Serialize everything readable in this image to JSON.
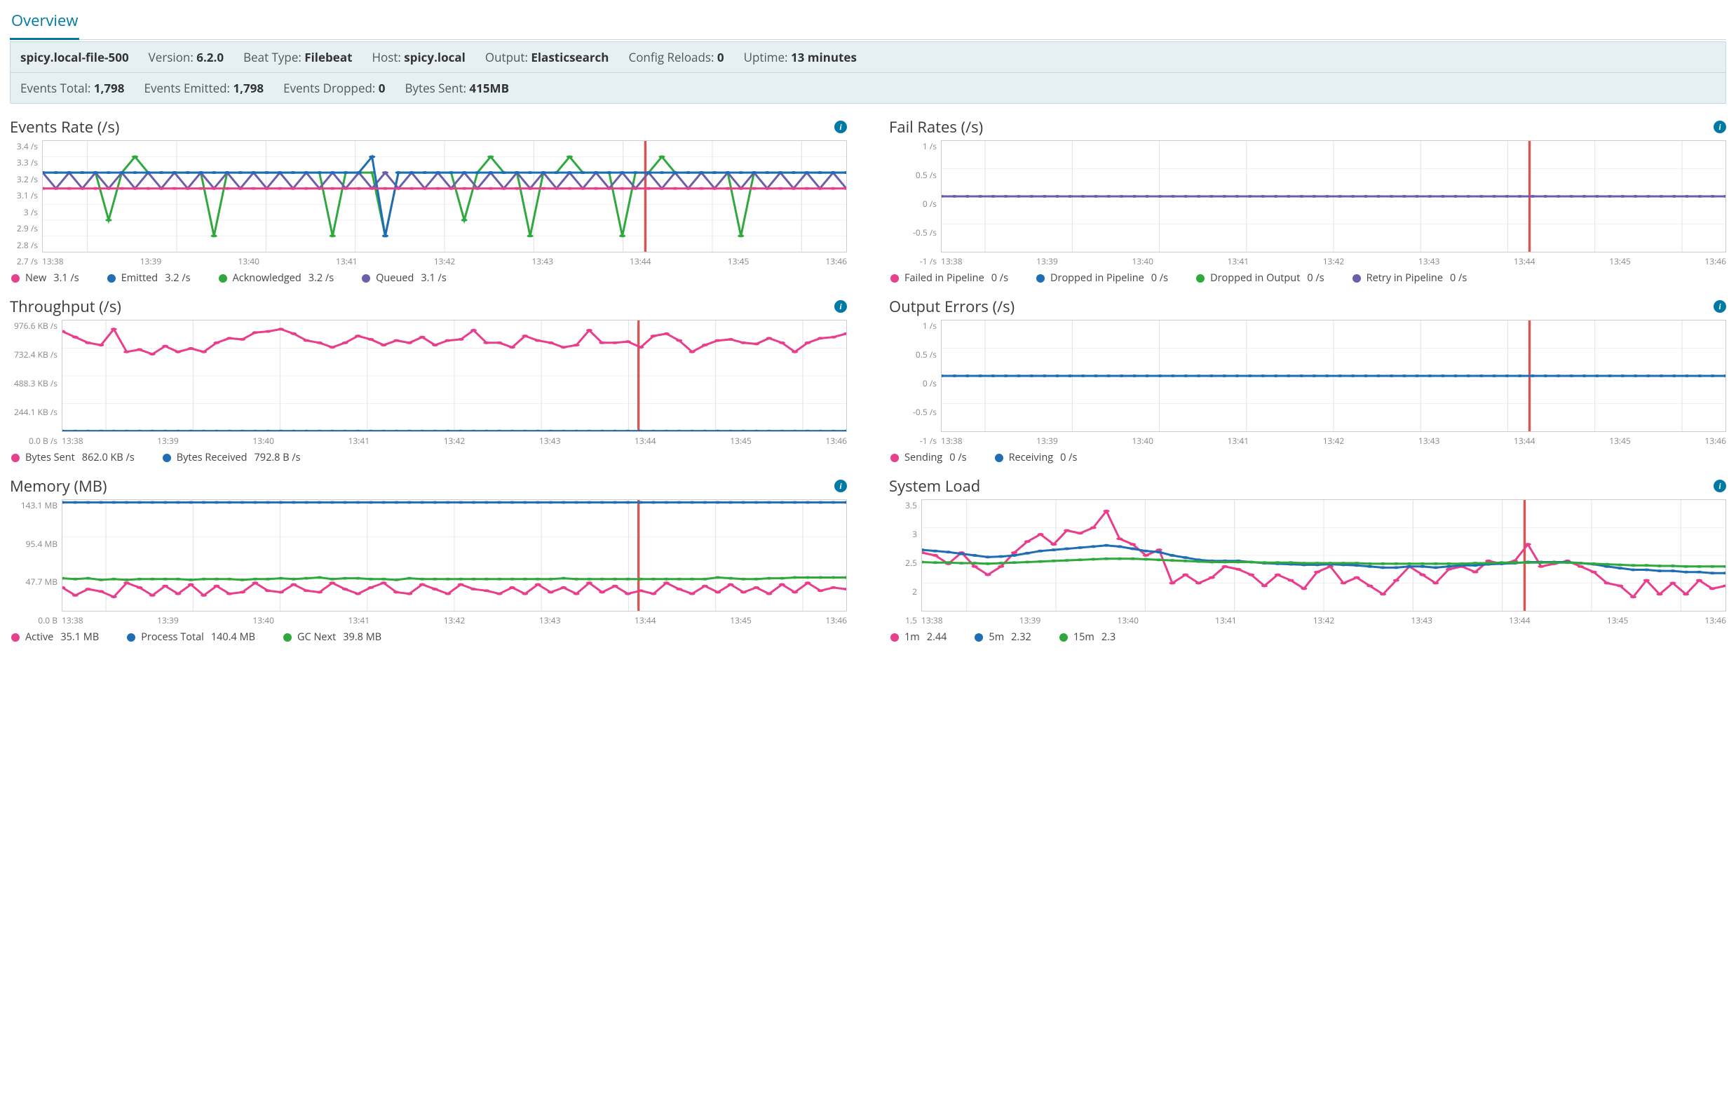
{
  "tab": {
    "label": "Overview"
  },
  "summary": {
    "row1": [
      {
        "kind": "node",
        "value": "spicy.local-file-500"
      },
      {
        "label": "Version:",
        "value": "6.2.0"
      },
      {
        "label": "Beat Type:",
        "value": "Filebeat"
      },
      {
        "label": "Host:",
        "value": "spicy.local"
      },
      {
        "label": "Output:",
        "value": "Elasticsearch"
      },
      {
        "label": "Config Reloads:",
        "value": "0"
      },
      {
        "label": "Uptime:",
        "value": "13 minutes"
      }
    ],
    "row2": [
      {
        "label": "Events Total:",
        "value": "1,798"
      },
      {
        "label": "Events Emitted:",
        "value": "1,798"
      },
      {
        "label": "Events Dropped:",
        "value": "0"
      },
      {
        "label": "Bytes Sent:",
        "value": "415MB"
      }
    ]
  },
  "x_labels": [
    "13:38",
    "13:39",
    "13:40",
    "13:41",
    "13:42",
    "13:43",
    "13:44",
    "13:45",
    "13:46"
  ],
  "colors": {
    "pink": "#e83e8c",
    "blue": "#1f6db5",
    "green": "#2fa83e",
    "purple": "#6b5fab",
    "grid": "#e4e4e4",
    "border": "#cccccc",
    "marker_red": "#d9534f"
  },
  "charts": {
    "events_rate": {
      "title": "Events Rate (/s)",
      "y_labels": [
        "3.4 /s",
        "3.3 /s",
        "3.2 /s",
        "3.1 /s",
        "3 /s",
        "2.9 /s",
        "2.8 /s",
        "2.7 /s"
      ],
      "y_min": 2.7,
      "y_max": 3.4,
      "marker_x": 0.75,
      "legend": [
        {
          "color": "pink",
          "label": "New",
          "value": "3.1 /s"
        },
        {
          "color": "blue",
          "label": "Emitted",
          "value": "3.2 /s"
        },
        {
          "color": "green",
          "label": "Acknowledged",
          "value": "3.2 /s"
        },
        {
          "color": "purple",
          "label": "Queued",
          "value": "3.1 /s"
        }
      ],
      "series": {
        "green": [
          3.2,
          3.2,
          3.2,
          3.2,
          3.2,
          2.9,
          3.2,
          3.3,
          3.2,
          3.2,
          3.2,
          3.2,
          3.2,
          2.8,
          3.2,
          3.2,
          3.2,
          3.2,
          3.2,
          3.2,
          3.2,
          3.2,
          2.8,
          3.2,
          3.2,
          3.2,
          2.8,
          3.2,
          3.2,
          3.2,
          3.2,
          3.2,
          2.9,
          3.2,
          3.3,
          3.2,
          3.2,
          2.8,
          3.2,
          3.2,
          3.3,
          3.2,
          3.2,
          3.2,
          2.8,
          3.2,
          3.2,
          3.3,
          3.2,
          3.2,
          3.2,
          3.2,
          3.2,
          2.8,
          3.2,
          3.2,
          3.2,
          3.2,
          3.2,
          3.2,
          3.2,
          3.2
        ],
        "purple": [
          3.2,
          3.1,
          3.2,
          3.1,
          3.2,
          3.1,
          3.2,
          3.1,
          3.2,
          3.1,
          3.2,
          3.1,
          3.2,
          3.1,
          3.2,
          3.1,
          3.2,
          3.1,
          3.2,
          3.1,
          3.2,
          3.1,
          3.2,
          3.1,
          3.2,
          3.1,
          3.2,
          3.1,
          3.2,
          3.1,
          3.2,
          3.1,
          3.2,
          3.1,
          3.2,
          3.1,
          3.2,
          3.1,
          3.2,
          3.1,
          3.2,
          3.1,
          3.2,
          3.1,
          3.2,
          3.1,
          3.2,
          3.1,
          3.2,
          3.1,
          3.2,
          3.1,
          3.2,
          3.1,
          3.2,
          3.1,
          3.2,
          3.1,
          3.2,
          3.1,
          3.2,
          3.1
        ],
        "blue": [
          3.2,
          3.2,
          3.2,
          3.2,
          3.2,
          3.2,
          3.2,
          3.2,
          3.2,
          3.2,
          3.2,
          3.2,
          3.2,
          3.2,
          3.2,
          3.2,
          3.2,
          3.2,
          3.2,
          3.2,
          3.2,
          3.2,
          3.2,
          3.2,
          3.2,
          3.3,
          2.8,
          3.2,
          3.2,
          3.2,
          3.2,
          3.2,
          3.2,
          3.2,
          3.2,
          3.2,
          3.2,
          3.2,
          3.2,
          3.2,
          3.2,
          3.2,
          3.2,
          3.2,
          3.2,
          3.2,
          3.2,
          3.2,
          3.2,
          3.2,
          3.2,
          3.2,
          3.2,
          3.2,
          3.2,
          3.2,
          3.2,
          3.2,
          3.2,
          3.2,
          3.2,
          3.2
        ],
        "pink": [
          3.1,
          3.1,
          3.1,
          3.1,
          3.1,
          3.1,
          3.1,
          3.1,
          3.1,
          3.1,
          3.1,
          3.1,
          3.1,
          3.1,
          3.1,
          3.1,
          3.1,
          3.1,
          3.1,
          3.1,
          3.1,
          3.1,
          3.1,
          3.1,
          3.1,
          3.1,
          3.1,
          3.1,
          3.1,
          3.1,
          3.1,
          3.1,
          3.1,
          3.1,
          3.1,
          3.1,
          3.1,
          3.1,
          3.1,
          3.1,
          3.1,
          3.1,
          3.1,
          3.1,
          3.1,
          3.1,
          3.1,
          3.1,
          3.1,
          3.1,
          3.1,
          3.1,
          3.1,
          3.1,
          3.1,
          3.1,
          3.1,
          3.1,
          3.1,
          3.1,
          3.1,
          3.1
        ]
      }
    },
    "fail_rates": {
      "title": "Fail Rates (/s)",
      "y_labels": [
        "1 /s",
        "0.5 /s",
        "0 /s",
        "-0.5 /s",
        "-1 /s"
      ],
      "y_min": -1,
      "y_max": 1,
      "marker_x": 0.75,
      "legend": [
        {
          "color": "pink",
          "label": "Failed in Pipeline",
          "value": "0 /s"
        },
        {
          "color": "blue",
          "label": "Dropped in Pipeline",
          "value": "0 /s"
        },
        {
          "color": "green",
          "label": "Dropped in Output",
          "value": "0 /s"
        },
        {
          "color": "purple",
          "label": "Retry in Pipeline",
          "value": "0 /s"
        }
      ],
      "series": {
        "purple": [
          0,
          0,
          0,
          0,
          0,
          0,
          0,
          0,
          0,
          0,
          0,
          0,
          0,
          0,
          0,
          0,
          0,
          0,
          0,
          0,
          0,
          0,
          0,
          0,
          0,
          0,
          0,
          0,
          0,
          0,
          0,
          0,
          0,
          0,
          0,
          0,
          0,
          0,
          0,
          0,
          0,
          0,
          0,
          0,
          0,
          0,
          0,
          0,
          0,
          0,
          0,
          0,
          0,
          0,
          0,
          0,
          0,
          0,
          0,
          0,
          0,
          0
        ]
      }
    },
    "throughput": {
      "title": "Throughput (/s)",
      "y_labels": [
        "976.6 KB /s",
        "732.4 KB /s",
        "488.3 KB /s",
        "244.1 KB /s",
        "0.0 B /s"
      ],
      "y_min": 0,
      "y_max": 976.6,
      "marker_x": 0.735,
      "legend": [
        {
          "color": "pink",
          "label": "Bytes Sent",
          "value": "862.0 KB /s"
        },
        {
          "color": "blue",
          "label": "Bytes Received",
          "value": "792.8 B /s"
        }
      ],
      "series": {
        "pink": [
          880,
          830,
          780,
          760,
          900,
          700,
          720,
          680,
          750,
          700,
          730,
          700,
          780,
          820,
          810,
          870,
          880,
          900,
          860,
          800,
          780,
          740,
          780,
          840,
          810,
          760,
          800,
          780,
          830,
          760,
          800,
          810,
          890,
          780,
          780,
          740,
          840,
          800,
          780,
          740,
          760,
          890,
          780,
          780,
          790,
          740,
          840,
          860,
          800,
          700,
          760,
          800,
          810,
          780,
          770,
          820,
          780,
          700,
          780,
          820,
          830,
          860
        ],
        "blue": [
          2,
          2,
          2,
          2,
          2,
          2,
          2,
          2,
          2,
          2,
          2,
          2,
          2,
          2,
          2,
          2,
          2,
          2,
          2,
          2,
          2,
          2,
          2,
          2,
          2,
          2,
          2,
          2,
          2,
          2,
          2,
          2,
          2,
          2,
          2,
          2,
          2,
          2,
          2,
          2,
          2,
          2,
          2,
          2,
          2,
          2,
          2,
          2,
          2,
          2,
          2,
          2,
          2,
          2,
          2,
          2,
          2,
          2,
          2,
          2,
          2,
          2
        ]
      }
    },
    "output_errors": {
      "title": "Output Errors (/s)",
      "y_labels": [
        "1 /s",
        "0.5 /s",
        "0 /s",
        "-0.5 /s",
        "-1 /s"
      ],
      "y_min": -1,
      "y_max": 1,
      "marker_x": 0.75,
      "legend": [
        {
          "color": "pink",
          "label": "Sending",
          "value": "0 /s"
        },
        {
          "color": "blue",
          "label": "Receiving",
          "value": "0 /s"
        }
      ],
      "series": {
        "blue": [
          0,
          0,
          0,
          0,
          0,
          0,
          0,
          0,
          0,
          0,
          0,
          0,
          0,
          0,
          0,
          0,
          0,
          0,
          0,
          0,
          0,
          0,
          0,
          0,
          0,
          0,
          0,
          0,
          0,
          0,
          0,
          0,
          0,
          0,
          0,
          0,
          0,
          0,
          0,
          0,
          0,
          0,
          0,
          0,
          0,
          0,
          0,
          0,
          0,
          0,
          0,
          0,
          0,
          0,
          0,
          0,
          0,
          0,
          0,
          0,
          0,
          0
        ]
      }
    },
    "memory": {
      "title": "Memory (MB)",
      "y_labels": [
        "143.1 MB",
        "95.4 MB",
        "47.7 MB",
        "0.0 B"
      ],
      "y_min": 0,
      "y_max": 143.1,
      "marker_x": 0.735,
      "legend": [
        {
          "color": "pink",
          "label": "Active",
          "value": "35.1 MB"
        },
        {
          "color": "blue",
          "label": "Process Total",
          "value": "140.4 MB"
        },
        {
          "color": "green",
          "label": "GC Next",
          "value": "39.8 MB"
        }
      ],
      "series": {
        "blue": [
          140,
          140,
          140,
          140,
          140,
          140,
          140,
          140,
          140,
          140,
          140,
          140,
          140,
          140,
          140,
          140,
          140,
          140,
          140,
          140,
          140,
          140,
          140,
          140,
          140,
          140,
          140,
          140,
          140,
          140,
          140,
          140,
          140,
          140,
          140,
          140,
          140,
          140,
          140,
          140,
          140,
          140,
          140,
          140,
          140,
          140,
          140,
          140,
          140,
          140,
          140,
          140,
          140,
          140,
          140,
          140,
          140,
          140,
          140,
          140,
          140,
          140
        ],
        "green": [
          42,
          41,
          42,
          40,
          41,
          40,
          41,
          41,
          41,
          41,
          40,
          41,
          41,
          41,
          40,
          41,
          41,
          42,
          41,
          42,
          43,
          41,
          42,
          42,
          41,
          41,
          40,
          42,
          41,
          41,
          41,
          41,
          41,
          41,
          41,
          41,
          41,
          41,
          41,
          42,
          41,
          41,
          41,
          41,
          41,
          41,
          41,
          41,
          41,
          41,
          41,
          43,
          42,
          41,
          41,
          42,
          42,
          43,
          43,
          43,
          43,
          43
        ],
        "pink": [
          30,
          20,
          28,
          25,
          18,
          36,
          30,
          20,
          32,
          22,
          34,
          20,
          32,
          22,
          24,
          36,
          26,
          24,
          34,
          26,
          24,
          36,
          28,
          22,
          30,
          36,
          24,
          22,
          34,
          28,
          22,
          34,
          28,
          26,
          22,
          30,
          22,
          34,
          24,
          30,
          22,
          36,
          24,
          32,
          22,
          26,
          22,
          36,
          28,
          22,
          32,
          24,
          34,
          24,
          30,
          22,
          34,
          24,
          36,
          26,
          30,
          28
        ]
      }
    },
    "system_load": {
      "title": "System Load",
      "y_labels": [
        "3.5",
        "3",
        "2.5",
        "2",
        "1.5"
      ],
      "y_min": 1.5,
      "y_max": 3.5,
      "marker_x": 0.75,
      "legend": [
        {
          "color": "pink",
          "label": "1m",
          "value": "2.44"
        },
        {
          "color": "blue",
          "label": "5m",
          "value": "2.32"
        },
        {
          "color": "green",
          "label": "15m",
          "value": "2.3"
        }
      ],
      "series": {
        "pink": [
          2.55,
          2.5,
          2.35,
          2.55,
          2.3,
          2.15,
          2.3,
          2.55,
          2.75,
          2.88,
          2.7,
          2.95,
          2.9,
          3.0,
          3.3,
          2.8,
          2.7,
          2.5,
          2.6,
          2.0,
          2.15,
          2.0,
          2.1,
          2.3,
          2.25,
          2.15,
          1.95,
          2.15,
          2.05,
          1.9,
          2.2,
          2.3,
          2.0,
          2.1,
          1.95,
          1.8,
          2.05,
          2.3,
          2.15,
          2.0,
          2.25,
          2.3,
          2.2,
          2.4,
          2.35,
          2.4,
          2.7,
          2.3,
          2.35,
          2.4,
          2.3,
          2.2,
          2.0,
          1.95,
          1.75,
          2.05,
          1.8,
          2.0,
          1.8,
          2.05,
          1.9,
          1.95
        ],
        "blue": [
          2.6,
          2.58,
          2.56,
          2.53,
          2.5,
          2.47,
          2.48,
          2.5,
          2.54,
          2.58,
          2.6,
          2.62,
          2.64,
          2.66,
          2.68,
          2.66,
          2.62,
          2.58,
          2.56,
          2.5,
          2.46,
          2.42,
          2.4,
          2.4,
          2.4,
          2.38,
          2.36,
          2.35,
          2.34,
          2.33,
          2.33,
          2.34,
          2.33,
          2.32,
          2.3,
          2.28,
          2.28,
          2.3,
          2.3,
          2.28,
          2.3,
          2.32,
          2.32,
          2.34,
          2.35,
          2.36,
          2.38,
          2.38,
          2.38,
          2.38,
          2.36,
          2.34,
          2.3,
          2.27,
          2.24,
          2.24,
          2.22,
          2.22,
          2.2,
          2.2,
          2.18,
          2.18
        ],
        "green": [
          2.38,
          2.37,
          2.37,
          2.36,
          2.36,
          2.35,
          2.36,
          2.37,
          2.38,
          2.39,
          2.4,
          2.41,
          2.42,
          2.43,
          2.44,
          2.44,
          2.44,
          2.43,
          2.42,
          2.41,
          2.4,
          2.39,
          2.38,
          2.38,
          2.38,
          2.38,
          2.37,
          2.37,
          2.37,
          2.36,
          2.36,
          2.36,
          2.36,
          2.36,
          2.35,
          2.35,
          2.35,
          2.35,
          2.35,
          2.35,
          2.35,
          2.35,
          2.36,
          2.36,
          2.37,
          2.37,
          2.37,
          2.37,
          2.37,
          2.37,
          2.36,
          2.35,
          2.34,
          2.33,
          2.32,
          2.32,
          2.31,
          2.31,
          2.3,
          2.3,
          2.3,
          2.3
        ]
      }
    }
  }
}
